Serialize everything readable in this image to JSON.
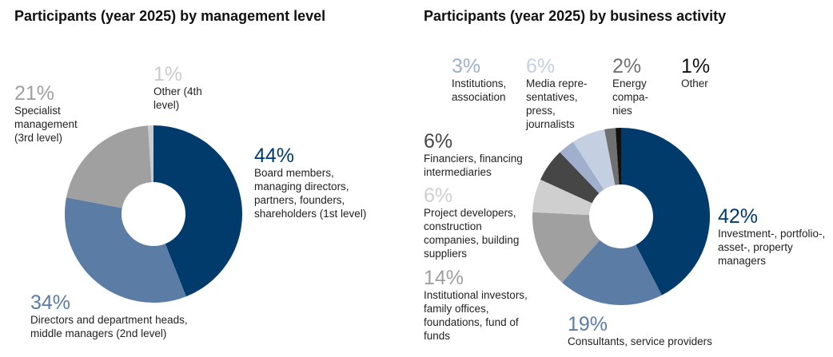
{
  "chart_data": [
    {
      "type": "pie",
      "title": "Participants (year 2025) by management level",
      "slices": [
        {
          "pct": "44%",
          "value": 44,
          "label": "Board members, managing directors, partners, founders, shareholders (1st level)",
          "color": "#003b6c"
        },
        {
          "pct": "34%",
          "value": 34,
          "label": "Directors and department heads, middle managers (2nd level)",
          "color": "#5b7ca5"
        },
        {
          "pct": "21%",
          "value": 21,
          "label": "Specialist management (3rd level)",
          "color": "#a0a0a0"
        },
        {
          "pct": "1%",
          "value": 1,
          "label": "Other (4th level)",
          "color": "#cbcbcb"
        }
      ]
    },
    {
      "type": "pie",
      "title": "Participants (year 2025) by business activity",
      "slices": [
        {
          "pct": "42%",
          "value": 42,
          "label": "Investment-, portfolio-, asset-, property managers",
          "color": "#003b6c"
        },
        {
          "pct": "19%",
          "value": 19,
          "label": "Consultants, service providers",
          "color": "#5b7ca5"
        },
        {
          "pct": "14%",
          "value": 14,
          "label": "Institutional investors, family offices, foundations, fund of funds",
          "color": "#a0a0a0"
        },
        {
          "pct": "6%",
          "value": 6,
          "label": "Project developers, construction companies, building suppliers",
          "color": "#cfcfcf"
        },
        {
          "pct": "6%",
          "value": 6,
          "label": "Financiers, financing intermediaries",
          "color": "#464646"
        },
        {
          "pct": "3%",
          "value": 3,
          "label": "Institutions, association",
          "color": "#9fafcc"
        },
        {
          "pct": "6%",
          "value": 6,
          "label": "Media repre-sentatives, press, journalists",
          "color": "#c4cfe1"
        },
        {
          "pct": "2%",
          "value": 2,
          "label": "Energy compa-nies",
          "color": "#707070"
        },
        {
          "pct": "1%",
          "value": 1,
          "label": "Other",
          "color": "#111111"
        }
      ]
    }
  ]
}
